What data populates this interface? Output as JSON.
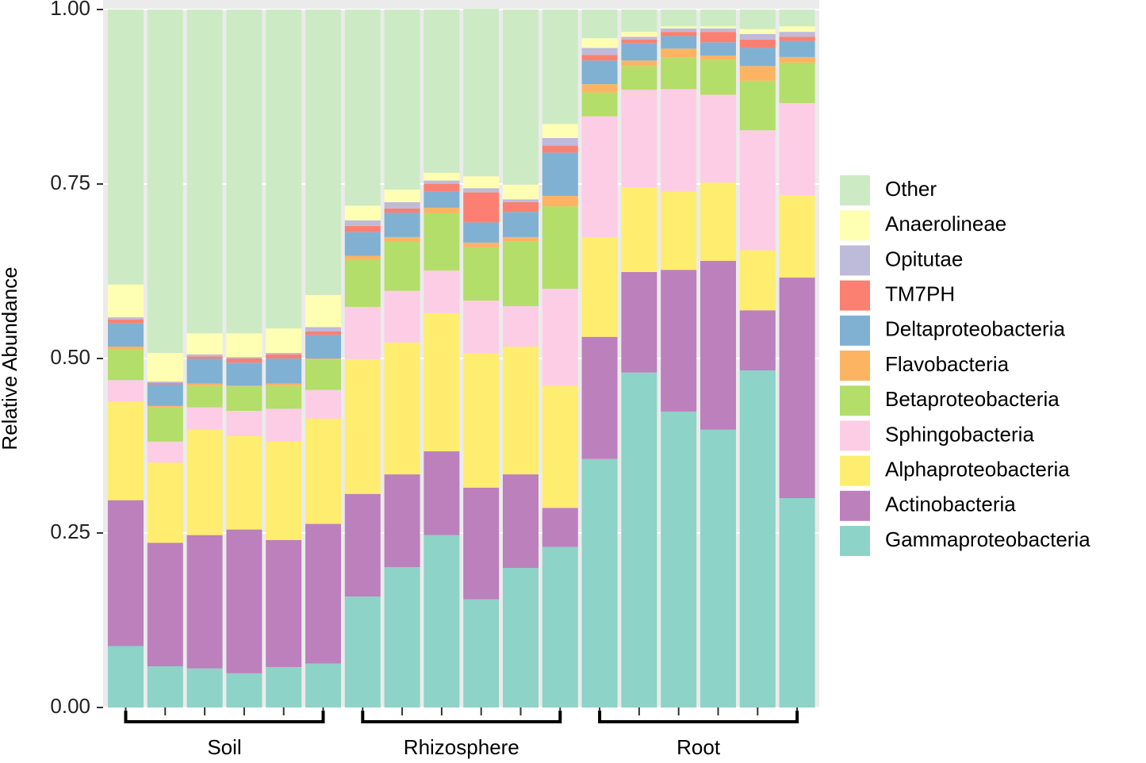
{
  "chart_data": {
    "type": "stacked_bar",
    "y_label": "Relative Abundance",
    "group_labels": [
      "Soil",
      "Rhizosphere",
      "Root"
    ],
    "categories": [
      null,
      null,
      null,
      null,
      null,
      null,
      null,
      null,
      null,
      null,
      null,
      null,
      null,
      null,
      null,
      null,
      null,
      null
    ],
    "ylim": [
      0,
      1
    ],
    "yticks": [
      {
        "value": 0,
        "label": "0.00"
      },
      0.25,
      {
        "value": 0.5,
        "label": "0.50"
      },
      0.75,
      {
        "value": 1,
        "label": "1.00"
      }
    ],
    "grid": true,
    "legend_position": "right",
    "series": [
      {
        "name": "Gammaproteobacteria",
        "color": "#8DD3C7",
        "values": [
          0.088,
          0.059,
          0.056,
          0.049,
          0.058,
          0.063,
          0.159,
          0.201,
          0.247,
          0.155,
          0.2,
          0.23,
          0.356,
          0.48,
          0.424,
          0.398,
          0.483,
          0.3
        ]
      },
      {
        "name": "Actinobacteria",
        "color": "#BC80BD",
        "values": [
          0.209,
          0.177,
          0.191,
          0.206,
          0.182,
          0.2,
          0.147,
          0.133,
          0.12,
          0.16,
          0.134,
          0.056,
          0.175,
          0.144,
          0.203,
          0.242,
          0.086,
          0.316
        ]
      },
      {
        "name": "Alphaproteobacteria",
        "color": "#FFED6F",
        "values": [
          0.141,
          0.115,
          0.151,
          0.134,
          0.141,
          0.151,
          0.193,
          0.189,
          0.198,
          0.192,
          0.183,
          0.175,
          0.143,
          0.121,
          0.112,
          0.112,
          0.086,
          0.118
        ]
      },
      {
        "name": "Sphingobacteria",
        "color": "#FCCDE5",
        "values": [
          0.031,
          0.03,
          0.032,
          0.036,
          0.047,
          0.041,
          0.075,
          0.074,
          0.061,
          0.076,
          0.058,
          0.139,
          0.173,
          0.14,
          0.147,
          0.126,
          0.172,
          0.132
        ]
      },
      {
        "name": "Betaproteobacteria",
        "color": "#B3DE69",
        "values": [
          0.044,
          0.049,
          0.031,
          0.035,
          0.033,
          0.043,
          0.067,
          0.07,
          0.082,
          0.076,
          0.093,
          0.118,
          0.034,
          0.034,
          0.045,
          0.05,
          0.071,
          0.058
        ]
      },
      {
        "name": "Flavobacteria",
        "color": "#FDB462",
        "values": [
          0.004,
          0.002,
          0.003,
          0.001,
          0.003,
          0.002,
          0.006,
          0.007,
          0.008,
          0.007,
          0.006,
          0.015,
          0.012,
          0.008,
          0.013,
          0.006,
          0.021,
          0.008
        ]
      },
      {
        "name": "Deltaproteobacteria",
        "color": "#80B1D3",
        "values": [
          0.034,
          0.031,
          0.036,
          0.033,
          0.036,
          0.034,
          0.034,
          0.035,
          0.023,
          0.029,
          0.036,
          0.062,
          0.034,
          0.025,
          0.018,
          0.019,
          0.026,
          0.023
        ]
      },
      {
        "name": "TM7PH",
        "color": "#FB8072",
        "values": [
          0.005,
          0.002,
          0.003,
          0.006,
          0.006,
          0.005,
          0.009,
          0.006,
          0.011,
          0.043,
          0.014,
          0.01,
          0.008,
          0.005,
          0.006,
          0.015,
          0.012,
          0.006
        ]
      },
      {
        "name": "Opitutae",
        "color": "#BEBADA",
        "values": [
          0.003,
          0.002,
          0.003,
          0.002,
          0.002,
          0.006,
          0.008,
          0.009,
          0.005,
          0.006,
          0.004,
          0.011,
          0.01,
          0.004,
          0.005,
          0.005,
          0.008,
          0.007
        ]
      },
      {
        "name": "Anaerolineae",
        "color": "#FFFFB3",
        "values": [
          0.047,
          0.041,
          0.03,
          0.034,
          0.035,
          0.046,
          0.021,
          0.018,
          0.011,
          0.017,
          0.021,
          0.02,
          0.014,
          0.007,
          0.003,
          0.003,
          0.007,
          0.008
        ]
      },
      {
        "name": "Other",
        "color": "#CCEBC5",
        "values": [
          0.394,
          0.492,
          0.464,
          0.464,
          0.457,
          0.409,
          0.281,
          0.258,
          0.234,
          0.24,
          0.251,
          0.164,
          0.041,
          0.032,
          0.024,
          0.024,
          0.028,
          0.024
        ]
      }
    ]
  }
}
